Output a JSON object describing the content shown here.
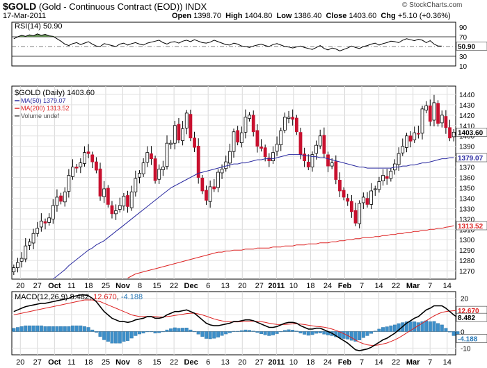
{
  "header": {
    "symbol": "$GOLD",
    "description": "(Gold - Continuous Contract (EOD))",
    "exchange": "INDX",
    "date": "17-Mar-2011",
    "open_label": "Open",
    "open": "1398.70",
    "high_label": "High",
    "high": "1404.80",
    "low_label": "Low",
    "low": "1386.40",
    "close_label": "Close",
    "close": "1403.60",
    "chg_label": "Chg",
    "chg": "+5.10 (+0.36%)",
    "copyright": "© StockCharts.com"
  },
  "chart_data": [
    {
      "type": "line",
      "panel": "rsi",
      "legend": "RSI(14) 50.90",
      "ylim": [
        10,
        100
      ],
      "ticks": [
        10,
        30,
        50,
        70,
        90
      ],
      "reference_lines": [
        30,
        50,
        70
      ],
      "last_value": "50.90",
      "values": [
        66,
        70,
        73,
        71,
        74,
        72,
        76,
        73,
        75,
        72,
        71,
        66,
        61,
        55,
        52,
        56,
        58,
        54,
        57,
        60,
        55,
        51,
        50,
        56,
        54,
        52,
        50,
        55,
        57,
        53,
        56,
        58,
        55,
        53,
        57,
        59,
        61,
        63,
        58,
        55,
        59,
        60,
        57,
        61,
        63,
        60,
        64,
        61,
        58,
        57,
        59,
        63,
        60,
        57,
        54,
        53,
        57,
        55,
        51,
        50,
        48,
        51,
        53,
        55,
        52,
        50,
        54,
        56,
        53,
        50,
        49,
        47,
        49,
        51,
        48,
        46,
        44,
        48,
        52,
        46,
        43,
        47,
        45,
        41,
        44,
        47,
        51,
        48,
        46,
        50,
        52,
        55,
        57,
        53,
        56,
        58,
        61,
        60,
        58,
        63,
        66,
        64,
        62,
        65,
        63,
        58,
        62,
        55,
        51,
        50.9
      ]
    },
    {
      "type": "candlestick",
      "panel": "price",
      "legend": "$GOLD (Daily) 1403.60",
      "series_labels": [
        {
          "name": "MA(50) 1379.07",
          "color": "#2a2aa0"
        },
        {
          "name": "MA(200) 1313.52",
          "color": "#dd2222"
        },
        {
          "name": "Volume undef",
          "color": "#555555"
        }
      ],
      "ylim": [
        1262,
        1448
      ],
      "ticks": [
        1270,
        1280,
        1290,
        1300,
        1310,
        1320,
        1330,
        1340,
        1350,
        1360,
        1370,
        1380,
        1390,
        1400,
        1410,
        1420,
        1430,
        1440
      ],
      "value_tags": [
        {
          "value": 1403.6,
          "label": "1403.60"
        },
        {
          "value": 1379.07,
          "label": "1379.07"
        },
        {
          "value": 1313.52,
          "label": "1313.52"
        }
      ],
      "x_labels": [
        "20",
        "27",
        "Oct",
        "11",
        "18",
        "25",
        "Nov",
        "8",
        "15",
        "22",
        "Dec",
        "6",
        "13",
        "20",
        "27",
        "2011",
        "10",
        "18",
        "24",
        "Feb",
        "7",
        "14",
        "22",
        "Mar",
        "7",
        "14"
      ],
      "closes": [
        1273,
        1278,
        1282,
        1294,
        1298,
        1306,
        1311,
        1318,
        1316,
        1321,
        1333,
        1341,
        1337,
        1346,
        1362,
        1370,
        1369,
        1374,
        1384,
        1383,
        1375,
        1367,
        1342,
        1349,
        1334,
        1325,
        1328,
        1333,
        1342,
        1332,
        1346,
        1359,
        1364,
        1374,
        1384,
        1378,
        1357,
        1368,
        1370,
        1393,
        1393,
        1410,
        1396,
        1407,
        1422,
        1398,
        1389,
        1360,
        1347,
        1338,
        1351,
        1349,
        1365,
        1368,
        1375,
        1385,
        1404,
        1394,
        1403,
        1418,
        1420,
        1404,
        1390,
        1388,
        1380,
        1376,
        1384,
        1392,
        1405,
        1418,
        1418,
        1416,
        1404,
        1382,
        1376,
        1370,
        1382,
        1391,
        1400,
        1383,
        1371,
        1374,
        1358,
        1347,
        1341,
        1337,
        1327,
        1316,
        1335,
        1341,
        1334,
        1347,
        1349,
        1356,
        1362,
        1359,
        1366,
        1373,
        1383,
        1390,
        1400,
        1395,
        1403,
        1402,
        1426,
        1429,
        1414,
        1432,
        1412,
        1420,
        1408,
        1398,
        1403.6
      ],
      "ma50": [
        1225,
        1229,
        1233,
        1237,
        1241,
        1244,
        1248,
        1251,
        1255,
        1258,
        1262,
        1265,
        1268,
        1271,
        1275,
        1278,
        1281,
        1284,
        1287,
        1290,
        1292,
        1295,
        1297,
        1299,
        1302,
        1305,
        1308,
        1311,
        1314,
        1317,
        1320,
        1323,
        1326,
        1329,
        1332,
        1335,
        1338,
        1341,
        1344,
        1347,
        1350,
        1352,
        1354,
        1356,
        1358,
        1360,
        1362,
        1364,
        1365,
        1366,
        1367,
        1368,
        1369,
        1370,
        1371,
        1372,
        1373,
        1373,
        1374,
        1374,
        1375,
        1376,
        1377,
        1377,
        1378,
        1378,
        1378,
        1379,
        1380,
        1381,
        1382,
        1382,
        1382,
        1382,
        1381,
        1381,
        1380,
        1380,
        1379,
        1379,
        1378,
        1377,
        1376,
        1375,
        1374,
        1373,
        1372,
        1371,
        1370,
        1370,
        1369,
        1369,
        1369,
        1369,
        1369,
        1369,
        1369,
        1370,
        1370,
        1371,
        1371,
        1372,
        1372,
        1373,
        1374,
        1374,
        1375,
        1376,
        1377,
        1378,
        1378,
        1379,
        1379.07
      ],
      "ma200": [
        1205,
        1207,
        1209,
        1211,
        1213,
        1215,
        1217,
        1219,
        1221,
        1223,
        1225,
        1227,
        1229,
        1231,
        1233,
        1235,
        1237,
        1239,
        1241,
        1243,
        1245,
        1247,
        1249,
        1251,
        1253,
        1255,
        1257,
        1259,
        1261,
        1263,
        1265,
        1267,
        1268,
        1269,
        1270,
        1271,
        1272,
        1273,
        1274,
        1275,
        1276,
        1277,
        1278,
        1279,
        1280,
        1281,
        1282,
        1283,
        1284,
        1285,
        1286,
        1287,
        1288,
        1288,
        1289,
        1289,
        1290,
        1290,
        1290,
        1291,
        1291,
        1291,
        1292,
        1292,
        1292,
        1292,
        1293,
        1293,
        1293,
        1294,
        1294,
        1294,
        1295,
        1295,
        1295,
        1296,
        1296,
        1296,
        1297,
        1297,
        1297,
        1298,
        1298,
        1299,
        1299,
        1300,
        1300,
        1301,
        1301,
        1302,
        1302,
        1302,
        1303,
        1303,
        1304,
        1304,
        1305,
        1305,
        1306,
        1306,
        1307,
        1307,
        1308,
        1308,
        1309,
        1309,
        1310,
        1310,
        1311,
        1311,
        1312,
        1312.5,
        1313.52
      ]
    },
    {
      "type": "line",
      "panel": "macd",
      "legend": "MACD(12,26,9) 8.482, 12.670, -4.188",
      "legend_parts": {
        "name": "MACD(12,26,9)",
        "macd": "8.482",
        "signal": "12.670",
        "hist": "-4.188"
      },
      "ylim": [
        -14,
        24
      ],
      "ticks": [
        -10,
        0,
        10,
        20
      ],
      "value_tags": [
        {
          "value": 12.67,
          "label": "12.670",
          "color": "#dd2222"
        },
        {
          "value": 8.482,
          "label": "8.482",
          "color": "#000000"
        },
        {
          "value": -4.188,
          "label": "-4.188",
          "color": "#2a7ab8"
        }
      ],
      "x_labels": [
        "20",
        "27",
        "Oct",
        "11",
        "18",
        "25",
        "Nov",
        "8",
        "15",
        "22",
        "Dec",
        "6",
        "13",
        "20",
        "27",
        "2011",
        "10",
        "18",
        "24",
        "Feb",
        "7",
        "14",
        "22",
        "Mar",
        "7",
        "14"
      ],
      "macd": [
        12,
        13,
        14,
        15,
        15.5,
        16,
        16.5,
        17,
        17,
        17.5,
        18,
        18.5,
        19,
        19.5,
        20,
        21,
        21.5,
        22,
        22,
        21.5,
        20,
        18,
        15,
        12,
        10,
        8,
        7,
        6,
        6,
        5.5,
        6,
        7,
        7.5,
        8,
        9,
        9,
        8,
        8,
        8.5,
        10,
        11,
        12,
        12,
        12.5,
        13,
        12,
        11,
        9,
        7,
        5,
        4,
        3.5,
        3.5,
        4,
        4.5,
        5,
        6,
        6,
        6.5,
        7,
        7,
        6.5,
        5.5,
        4.5,
        3.5,
        2.5,
        2.5,
        3,
        4,
        5,
        5.5,
        5.5,
        5,
        3.5,
        2.5,
        1.5,
        1.5,
        2,
        2,
        1,
        0,
        -1,
        -2.5,
        -4,
        -5.5,
        -7,
        -9,
        -11,
        -11.5,
        -11,
        -10.5,
        -9.5,
        -8,
        -6.5,
        -5,
        -4,
        -2.5,
        -1,
        1,
        3,
        5,
        6.5,
        8,
        9,
        11,
        13,
        14,
        15.5,
        15.5,
        15.5,
        14,
        12,
        10,
        8.482
      ],
      "signal": [
        10,
        10.5,
        11,
        11.5,
        12,
        12.5,
        13,
        13.5,
        14,
        14.5,
        15,
        15.5,
        16,
        16.5,
        17,
        17.5,
        18,
        18.5,
        19,
        19,
        19,
        18.5,
        18,
        17,
        16,
        15,
        14,
        13,
        12,
        11,
        10,
        9.5,
        9,
        9,
        9,
        9,
        9,
        8.8,
        8.7,
        9,
        9.3,
        9.7,
        10,
        10.4,
        10.8,
        11,
        11,
        10.6,
        10,
        9.2,
        8.4,
        7.6,
        6.9,
        6.4,
        6,
        5.8,
        5.8,
        5.8,
        5.9,
        6,
        6.2,
        6.2,
        6.1,
        5.9,
        5.5,
        5,
        4.6,
        4.3,
        4.2,
        4.3,
        4.4,
        4.6,
        4.7,
        4.5,
        4.2,
        3.8,
        3.4,
        3.1,
        2.9,
        2.6,
        2.1,
        1.5,
        0.7,
        -0.2,
        -1.3,
        -2.4,
        -3.7,
        -5.1,
        -6.4,
        -7.3,
        -8,
        -8.3,
        -8.3,
        -8,
        -7.5,
        -6.9,
        -6,
        -5,
        -3.8,
        -2.4,
        -0.9,
        0.6,
        2.1,
        3.6,
        5,
        6.5,
        8,
        9.4,
        10.6,
        11.5,
        12,
        12.3,
        12.5,
        12.67
      ]
    }
  ]
}
